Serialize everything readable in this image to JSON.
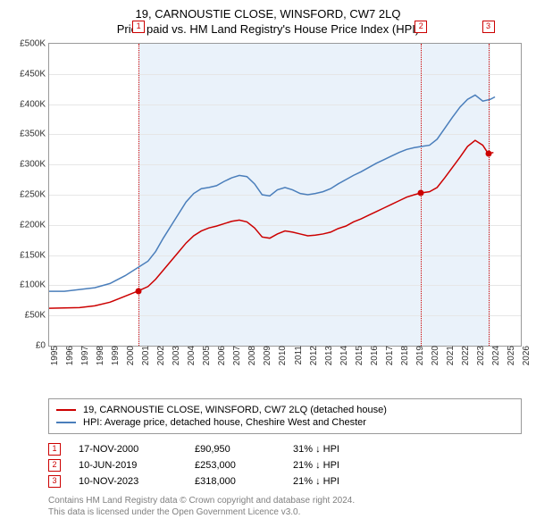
{
  "title_line1": "19, CARNOUSTIE CLOSE, WINSFORD, CW7 2LQ",
  "title_line2": "Price paid vs. HM Land Registry's House Price Index (HPI)",
  "chart": {
    "type": "line",
    "background_color": "#ffffff",
    "grid_color": "#e6e6e6",
    "border_color": "#999999",
    "highlight_band_color": "#eaf2fa",
    "x_min": 1995,
    "x_max": 2026,
    "x_ticks": [
      1995,
      1996,
      1997,
      1998,
      1999,
      2000,
      2001,
      2002,
      2003,
      2004,
      2005,
      2006,
      2007,
      2008,
      2009,
      2010,
      2011,
      2012,
      2013,
      2014,
      2015,
      2016,
      2017,
      2018,
      2019,
      2020,
      2021,
      2022,
      2023,
      2024,
      2025,
      2026
    ],
    "y_min": 0,
    "y_max": 500000,
    "y_ticks": [
      0,
      50000,
      100000,
      150000,
      200000,
      250000,
      300000,
      350000,
      400000,
      450000,
      500000
    ],
    "y_tick_labels": [
      "£0",
      "£50K",
      "£100K",
      "£150K",
      "£200K",
      "£250K",
      "£300K",
      "£350K",
      "£400K",
      "£450K",
      "£500K"
    ],
    "label_fontsize": 10,
    "highlight_start": 2000.88,
    "highlight_end": 2024.0,
    "series": {
      "price_paid": {
        "color": "#cc0000",
        "line_width": 1.5,
        "points": [
          [
            1995.0,
            62000
          ],
          [
            1996.0,
            62500
          ],
          [
            1997.0,
            63000
          ],
          [
            1998.0,
            66000
          ],
          [
            1999.0,
            72000
          ],
          [
            2000.0,
            82000
          ],
          [
            2000.88,
            90950
          ],
          [
            2001.5,
            98000
          ],
          [
            2002.0,
            110000
          ],
          [
            2002.5,
            125000
          ],
          [
            2003.0,
            140000
          ],
          [
            2003.5,
            155000
          ],
          [
            2004.0,
            170000
          ],
          [
            2004.5,
            182000
          ],
          [
            2005.0,
            190000
          ],
          [
            2005.5,
            195000
          ],
          [
            2006.0,
            198000
          ],
          [
            2006.5,
            202000
          ],
          [
            2007.0,
            206000
          ],
          [
            2007.5,
            208000
          ],
          [
            2008.0,
            205000
          ],
          [
            2008.5,
            195000
          ],
          [
            2009.0,
            180000
          ],
          [
            2009.5,
            178000
          ],
          [
            2010.0,
            185000
          ],
          [
            2010.5,
            190000
          ],
          [
            2011.0,
            188000
          ],
          [
            2011.5,
            185000
          ],
          [
            2012.0,
            182000
          ],
          [
            2012.5,
            183000
          ],
          [
            2013.0,
            185000
          ],
          [
            2013.5,
            188000
          ],
          [
            2014.0,
            194000
          ],
          [
            2014.5,
            198000
          ],
          [
            2015.0,
            205000
          ],
          [
            2015.5,
            210000
          ],
          [
            2016.0,
            216000
          ],
          [
            2016.5,
            222000
          ],
          [
            2017.0,
            228000
          ],
          [
            2017.5,
            234000
          ],
          [
            2018.0,
            240000
          ],
          [
            2018.5,
            246000
          ],
          [
            2019.0,
            250000
          ],
          [
            2019.44,
            253000
          ],
          [
            2020.0,
            255000
          ],
          [
            2020.5,
            262000
          ],
          [
            2021.0,
            278000
          ],
          [
            2021.5,
            295000
          ],
          [
            2022.0,
            312000
          ],
          [
            2022.5,
            330000
          ],
          [
            2023.0,
            340000
          ],
          [
            2023.5,
            332000
          ],
          [
            2023.86,
            318000
          ],
          [
            2024.2,
            320000
          ]
        ]
      },
      "hpi": {
        "color": "#4a7ebb",
        "line_width": 1.5,
        "points": [
          [
            1995.0,
            90000
          ],
          [
            1996.0,
            90000
          ],
          [
            1997.0,
            93000
          ],
          [
            1998.0,
            96000
          ],
          [
            1999.0,
            103000
          ],
          [
            2000.0,
            116000
          ],
          [
            2001.0,
            132000
          ],
          [
            2001.5,
            140000
          ],
          [
            2002.0,
            156000
          ],
          [
            2002.5,
            178000
          ],
          [
            2003.0,
            198000
          ],
          [
            2003.5,
            218000
          ],
          [
            2004.0,
            238000
          ],
          [
            2004.5,
            252000
          ],
          [
            2005.0,
            260000
          ],
          [
            2005.5,
            262000
          ],
          [
            2006.0,
            265000
          ],
          [
            2006.5,
            272000
          ],
          [
            2007.0,
            278000
          ],
          [
            2007.5,
            282000
          ],
          [
            2008.0,
            280000
          ],
          [
            2008.5,
            268000
          ],
          [
            2009.0,
            250000
          ],
          [
            2009.5,
            248000
          ],
          [
            2010.0,
            258000
          ],
          [
            2010.5,
            262000
          ],
          [
            2011.0,
            258000
          ],
          [
            2011.5,
            252000
          ],
          [
            2012.0,
            250000
          ],
          [
            2012.5,
            252000
          ],
          [
            2013.0,
            255000
          ],
          [
            2013.5,
            260000
          ],
          [
            2014.0,
            268000
          ],
          [
            2014.5,
            275000
          ],
          [
            2015.0,
            282000
          ],
          [
            2015.5,
            288000
          ],
          [
            2016.0,
            295000
          ],
          [
            2016.5,
            302000
          ],
          [
            2017.0,
            308000
          ],
          [
            2017.5,
            314000
          ],
          [
            2018.0,
            320000
          ],
          [
            2018.5,
            325000
          ],
          [
            2019.0,
            328000
          ],
          [
            2019.5,
            330000
          ],
          [
            2020.0,
            332000
          ],
          [
            2020.5,
            342000
          ],
          [
            2021.0,
            360000
          ],
          [
            2021.5,
            378000
          ],
          [
            2022.0,
            395000
          ],
          [
            2022.5,
            408000
          ],
          [
            2023.0,
            415000
          ],
          [
            2023.5,
            405000
          ],
          [
            2024.0,
            408000
          ],
          [
            2024.3,
            412000
          ]
        ]
      }
    }
  },
  "markers": [
    {
      "n": "1",
      "x": 2000.88,
      "y": 90950,
      "color": "#cc0000"
    },
    {
      "n": "2",
      "x": 2019.44,
      "y": 253000,
      "color": "#cc0000"
    },
    {
      "n": "3",
      "x": 2023.86,
      "y": 318000,
      "color": "#cc0000"
    }
  ],
  "legend": {
    "rows": [
      {
        "color": "#cc0000",
        "text": "19, CARNOUSTIE CLOSE, WINSFORD, CW7 2LQ (detached house)"
      },
      {
        "color": "#4a7ebb",
        "text": "HPI: Average price, detached house, Cheshire West and Chester"
      }
    ]
  },
  "sales": [
    {
      "n": "1",
      "date": "17-NOV-2000",
      "price": "£90,950",
      "diff": "31% ↓ HPI",
      "color": "#cc0000"
    },
    {
      "n": "2",
      "date": "10-JUN-2019",
      "price": "£253,000",
      "diff": "21% ↓ HPI",
      "color": "#cc0000"
    },
    {
      "n": "3",
      "date": "10-NOV-2023",
      "price": "£318,000",
      "diff": "21% ↓ HPI",
      "color": "#cc0000"
    }
  ],
  "footer1": "Contains HM Land Registry data © Crown copyright and database right 2024.",
  "footer2": "This data is licensed under the Open Government Licence v3.0."
}
